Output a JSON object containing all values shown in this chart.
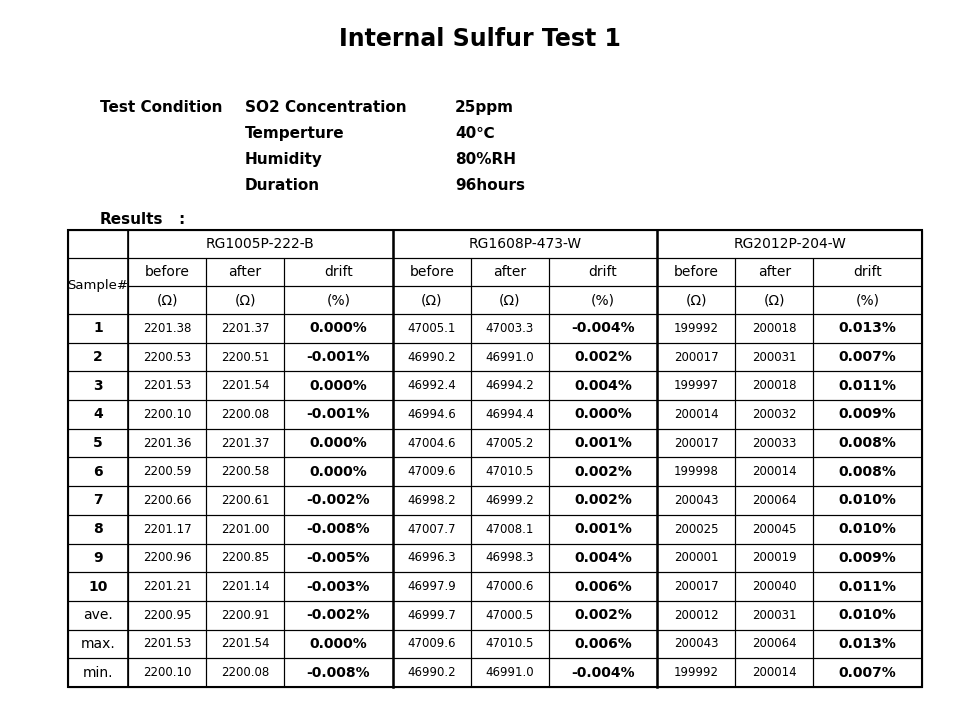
{
  "title": "Internal Sulfur Test 1",
  "test_condition_label": "Test Condition",
  "test_conditions": [
    [
      "SO2 Concentration",
      "25ppm"
    ],
    [
      "Temperture",
      "40℃"
    ],
    [
      "Humidity",
      "80%RH"
    ],
    [
      "Duration",
      "96hours"
    ]
  ],
  "results_label": "Results",
  "colon": ":",
  "group_headers": [
    "RG1005P-222-B",
    "RG1608P-473-W",
    "RG2012P-204-W"
  ],
  "col_headers_row1": [
    "before",
    "after",
    "drift",
    "before",
    "after",
    "drift",
    "before",
    "after",
    "drift"
  ],
  "col_headers_row2": [
    "(Ω)",
    "(Ω)",
    "(%)",
    "(Ω)",
    "(Ω)",
    "(%)",
    "(Ω)",
    "(Ω)",
    "(%)"
  ],
  "row_labels": [
    "1",
    "2",
    "3",
    "4",
    "5",
    "6",
    "7",
    "8",
    "9",
    "10",
    "ave.",
    "max.",
    "min."
  ],
  "data": [
    [
      "2201.38",
      "2201.37",
      "0.000%",
      "47005.1",
      "47003.3",
      "-0.004%",
      "199992",
      "200018",
      "0.013%"
    ],
    [
      "2200.53",
      "2200.51",
      "-0.001%",
      "46990.2",
      "46991.0",
      "0.002%",
      "200017",
      "200031",
      "0.007%"
    ],
    [
      "2201.53",
      "2201.54",
      "0.000%",
      "46992.4",
      "46994.2",
      "0.004%",
      "199997",
      "200018",
      "0.011%"
    ],
    [
      "2200.10",
      "2200.08",
      "-0.001%",
      "46994.6",
      "46994.4",
      "0.000%",
      "200014",
      "200032",
      "0.009%"
    ],
    [
      "2201.36",
      "2201.37",
      "0.000%",
      "47004.6",
      "47005.2",
      "0.001%",
      "200017",
      "200033",
      "0.008%"
    ],
    [
      "2200.59",
      "2200.58",
      "0.000%",
      "47009.6",
      "47010.5",
      "0.002%",
      "199998",
      "200014",
      "0.008%"
    ],
    [
      "2200.66",
      "2200.61",
      "-0.002%",
      "46998.2",
      "46999.2",
      "0.002%",
      "200043",
      "200064",
      "0.010%"
    ],
    [
      "2201.17",
      "2201.00",
      "-0.008%",
      "47007.7",
      "47008.1",
      "0.001%",
      "200025",
      "200045",
      "0.010%"
    ],
    [
      "2200.96",
      "2200.85",
      "-0.005%",
      "46996.3",
      "46998.3",
      "0.004%",
      "200001",
      "200019",
      "0.009%"
    ],
    [
      "2201.21",
      "2201.14",
      "-0.003%",
      "46997.9",
      "47000.6",
      "0.006%",
      "200017",
      "200040",
      "0.011%"
    ],
    [
      "2200.95",
      "2200.91",
      "-0.002%",
      "46999.7",
      "47000.5",
      "0.002%",
      "200012",
      "200031",
      "0.010%"
    ],
    [
      "2201.53",
      "2201.54",
      "0.000%",
      "47009.6",
      "47010.5",
      "0.006%",
      "200043",
      "200064",
      "0.013%"
    ],
    [
      "2200.10",
      "2200.08",
      "-0.008%",
      "46990.2",
      "46991.0",
      "-0.004%",
      "199992",
      "200014",
      "0.007%"
    ]
  ],
  "drift_col_indices": [
    2,
    5,
    8
  ],
  "bg_color": "#ffffff",
  "text_color": "#000000",
  "border_color": "#000000",
  "title_fontsize": 17,
  "body_fontsize": 11,
  "table_header_fontsize": 10,
  "table_data_fontsize": 8.5,
  "table_drift_fontsize": 10
}
